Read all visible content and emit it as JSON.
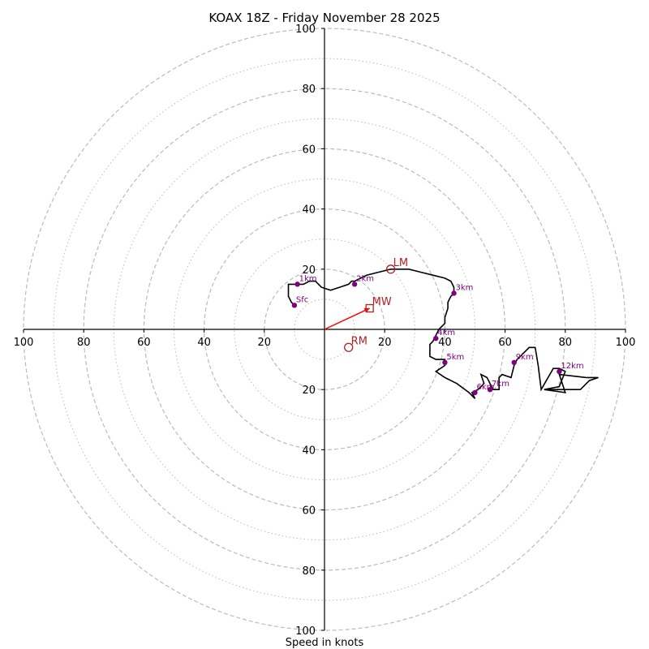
{
  "chart_data": {
    "type": "line",
    "title": "KOAX 18Z - Friday November 28 2025",
    "xlabel": "Speed in knots",
    "ylabel": "",
    "xlim": [
      -100,
      100
    ],
    "ylim": [
      -100,
      100
    ],
    "ring_major": [
      20,
      40,
      60,
      80,
      100
    ],
    "ring_minor": [
      10,
      30,
      50,
      70,
      90
    ],
    "axis_ticks": [
      20,
      40,
      60,
      80,
      100
    ],
    "colors": {
      "hodograph": "#000000",
      "height_marker": "#800080",
      "motion": "#b22222",
      "mean_wind_vector": "#ff0000",
      "grid": "#bbbbbb"
    },
    "hodograph": {
      "u": [
        -10,
        -11,
        -12,
        -12,
        -9,
        -7,
        -5,
        -3,
        -2,
        -1,
        2,
        5,
        8,
        9,
        10,
        12,
        14,
        18,
        22,
        28,
        32,
        36,
        40,
        42,
        43,
        43,
        42,
        41,
        41,
        40,
        40,
        38,
        37,
        36,
        35,
        35,
        37,
        39,
        40,
        40,
        37,
        40,
        44,
        48,
        50,
        49,
        51,
        53,
        52,
        54,
        56,
        58,
        58,
        59,
        62,
        63,
        64,
        66,
        68,
        70,
        70,
        70,
        70,
        71,
        72,
        76,
        78,
        80,
        80,
        78,
        73,
        80,
        78,
        87,
        91,
        88,
        85,
        83,
        80,
        77,
        74,
        73,
        73
      ],
      "v": [
        8,
        9,
        11,
        15,
        15,
        15,
        16,
        16,
        15,
        14,
        13,
        14,
        15,
        16,
        16,
        17,
        18,
        19,
        20,
        20,
        19,
        18,
        17,
        16,
        14,
        12,
        11,
        9,
        7,
        4,
        2,
        0,
        -2,
        -4,
        -5,
        -9,
        -10,
        -10,
        -10,
        -12,
        -14,
        -16,
        -18,
        -21,
        -23,
        -21,
        -20,
        -18,
        -15,
        -16,
        -20,
        -20,
        -16,
        -15,
        -16,
        -12,
        -10,
        -8,
        -6,
        -6,
        -6,
        -6,
        -6,
        -12,
        -20,
        -13,
        -13,
        -14,
        -14,
        -19,
        -20,
        -21,
        -15,
        -16,
        -16,
        -17,
        -20,
        -20,
        -20,
        -20,
        -20,
        -20,
        -20
      ]
    },
    "height_markers": [
      {
        "label": "Sfc",
        "u": -10,
        "v": 8
      },
      {
        "label": "1km",
        "u": -9,
        "v": 15
      },
      {
        "label": "2km",
        "u": 10,
        "v": 15
      },
      {
        "label": "3km",
        "u": 43,
        "v": 12
      },
      {
        "label": "4km",
        "u": 37,
        "v": -3
      },
      {
        "label": "5km",
        "u": 40,
        "v": -11
      },
      {
        "label": "6km",
        "u": 50,
        "v": -21
      },
      {
        "label": "7km",
        "u": 55,
        "v": -20
      },
      {
        "label": "9km",
        "u": 63,
        "v": -11
      },
      {
        "label": "12km",
        "u": 78,
        "v": -14
      }
    ],
    "storm_motions": [
      {
        "label": "LM",
        "u": 22,
        "v": 20,
        "marker": "circle"
      },
      {
        "label": "RM",
        "u": 8,
        "v": -6,
        "marker": "circle"
      },
      {
        "label": "MW",
        "u": 15,
        "v": 7,
        "marker": "square"
      }
    ]
  }
}
